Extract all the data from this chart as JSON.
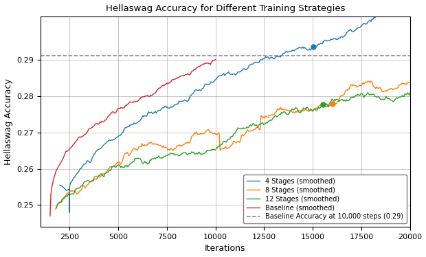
{
  "title": "Hellaswag Accuracy for Different Training Strategies",
  "xlabel": "Iterations",
  "ylabel": "Hellaswag Accuracy",
  "xlim": [
    1000,
    20000
  ],
  "ylim": [
    0.244,
    0.302
  ],
  "baseline_accuracy": 0.2912,
  "baseline_label": "Baseline Accuracy at 10,000 steps (0.29)",
  "legend_labels": [
    "4 Stages (smoothed)",
    "8 Stages (smoothed)",
    "12 Stages (smoothed)",
    "Baseline (smoothed)"
  ],
  "colors": {
    "4stages": "#1f77b4",
    "8stages": "#ff7f0e",
    "12stages": "#2ca02c",
    "baseline": "#d62728"
  },
  "xticks": [
    2500,
    5000,
    7500,
    10000,
    12500,
    15000,
    17500,
    20000
  ],
  "yticks": [
    0.25,
    0.26,
    0.27,
    0.28,
    0.29
  ],
  "grid": true
}
